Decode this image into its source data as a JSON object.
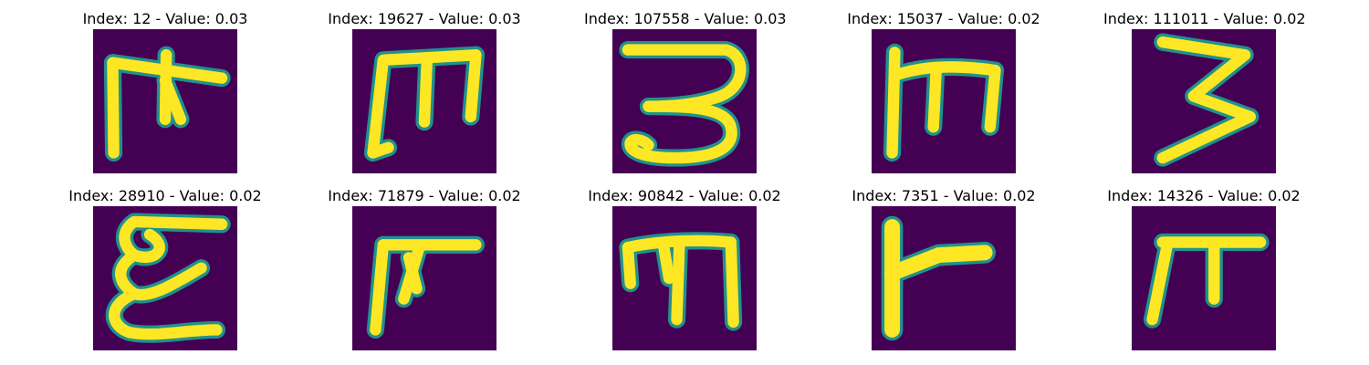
{
  "colors": {
    "background": "#440154",
    "stroke": "#fde725",
    "edge": "#21918c",
    "edge_soft": "#3b528b"
  },
  "tiles": [
    {
      "title": "Index: 12 - Value: 0.03",
      "glyph": "m-cross-bar"
    },
    {
      "title": "Index: 19627 - Value: 0.03",
      "glyph": "m-block"
    },
    {
      "title": "Index: 107558 - Value: 0.03",
      "glyph": "three-curly"
    },
    {
      "title": "Index: 15037 - Value: 0.02",
      "glyph": "m-thin"
    },
    {
      "title": "Index: 111011 - Value: 0.02",
      "glyph": "three-angular"
    },
    {
      "title": "Index: 28910 - Value: 0.02",
      "glyph": "epsilon-loopy"
    },
    {
      "title": "Index: 71879 - Value: 0.02",
      "glyph": "pi-slanted"
    },
    {
      "title": "Index: 90842 - Value: 0.02",
      "glyph": "m-wide"
    },
    {
      "title": "Index: 7351 - Value: 0.02",
      "glyph": "l-flag"
    },
    {
      "title": "Index: 14326 - Value: 0.02",
      "glyph": "pi-plain"
    }
  ]
}
